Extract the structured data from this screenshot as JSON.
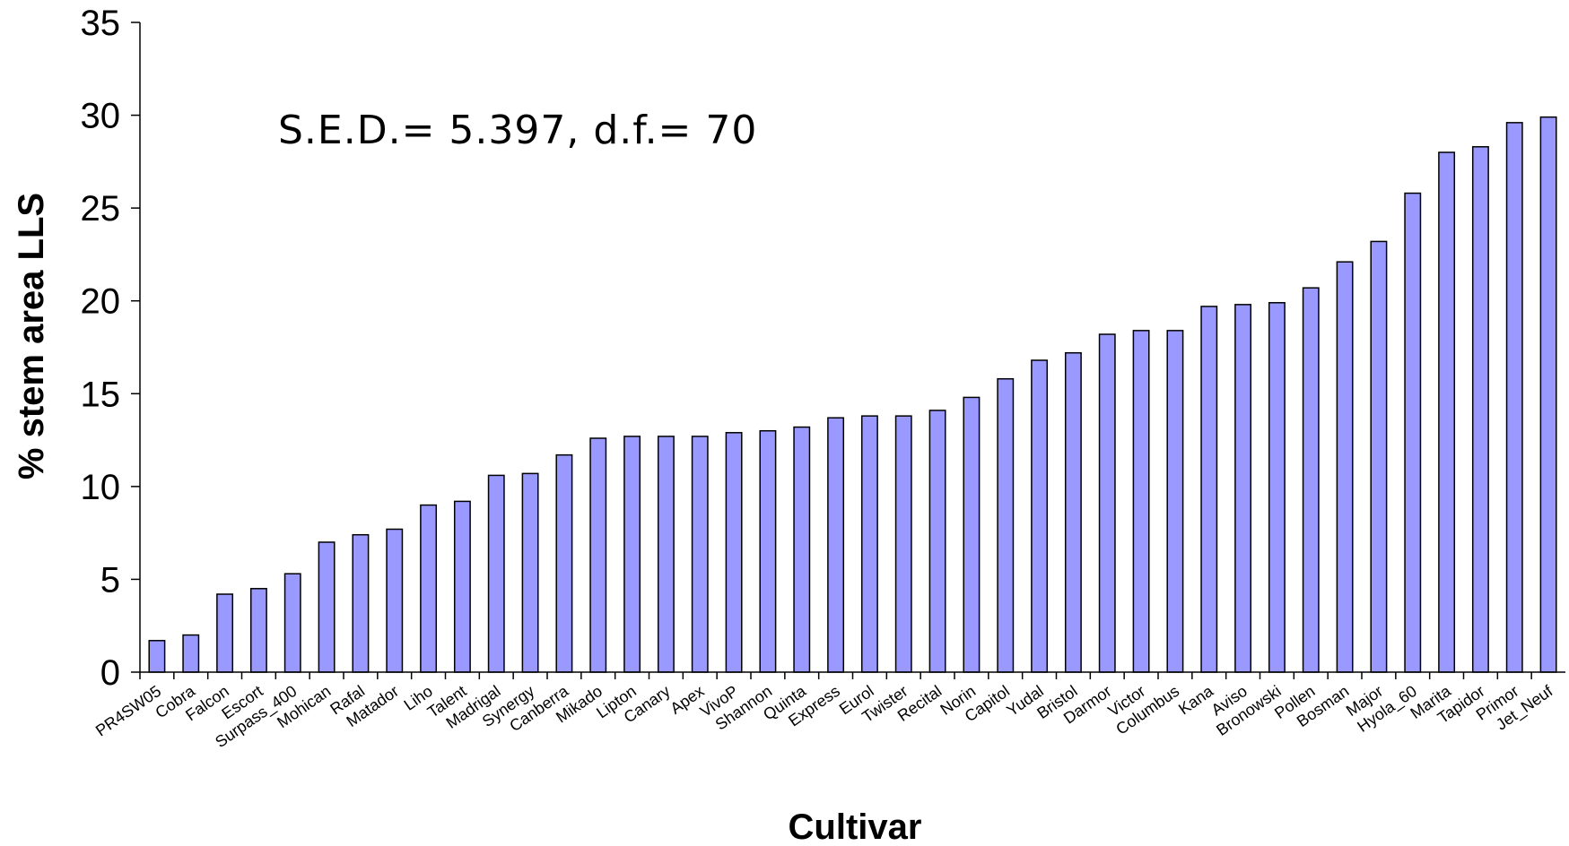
{
  "chart_data": {
    "type": "bar",
    "title": "",
    "xlabel": "Cultivar",
    "ylabel": "% stem area LLS",
    "annotation": "S.E.D.= 5.397, d.f.= 70",
    "ylim": [
      0,
      35
    ],
    "yticks": [
      0,
      5,
      10,
      15,
      20,
      25,
      30,
      35
    ],
    "grid": false,
    "legend": "none",
    "bar_color": "#9999ff",
    "bar_edge_color": "#000000",
    "categories": [
      "PR4SW05",
      "Cobra",
      "Falcon",
      "Escort",
      "Surpass_400",
      "Mohican",
      "Rafal",
      "Matador",
      "Liho",
      "Talent",
      "Madrigal",
      "Synergy",
      "Canberra",
      "Mikado",
      "Lipton",
      "Canary",
      "Apex",
      "VivoP",
      "Shannon",
      "Quinta",
      "Express",
      "Eurol",
      "Twister",
      "Recital",
      "Norin",
      "Capitol",
      "Yudal",
      "Bristol",
      "Darmor",
      "Victor",
      "Columbus",
      "Kana",
      "Aviso",
      "Bronowski",
      "Pollen",
      "Bosman",
      "Major",
      "Hyola_60",
      "Marita",
      "Tapidor",
      "Primor",
      "Jet_Neuf"
    ],
    "values": [
      1.7,
      2.0,
      4.2,
      4.5,
      5.3,
      7.0,
      7.4,
      7.7,
      9.0,
      9.2,
      10.6,
      10.7,
      11.7,
      12.6,
      12.7,
      12.7,
      12.7,
      12.9,
      13.0,
      13.2,
      13.7,
      13.8,
      13.8,
      14.1,
      14.8,
      15.8,
      16.8,
      17.2,
      18.2,
      18.4,
      18.4,
      19.7,
      19.8,
      19.9,
      20.7,
      22.1,
      23.2,
      25.8,
      28.0,
      28.3,
      29.6,
      29.9
    ]
  }
}
